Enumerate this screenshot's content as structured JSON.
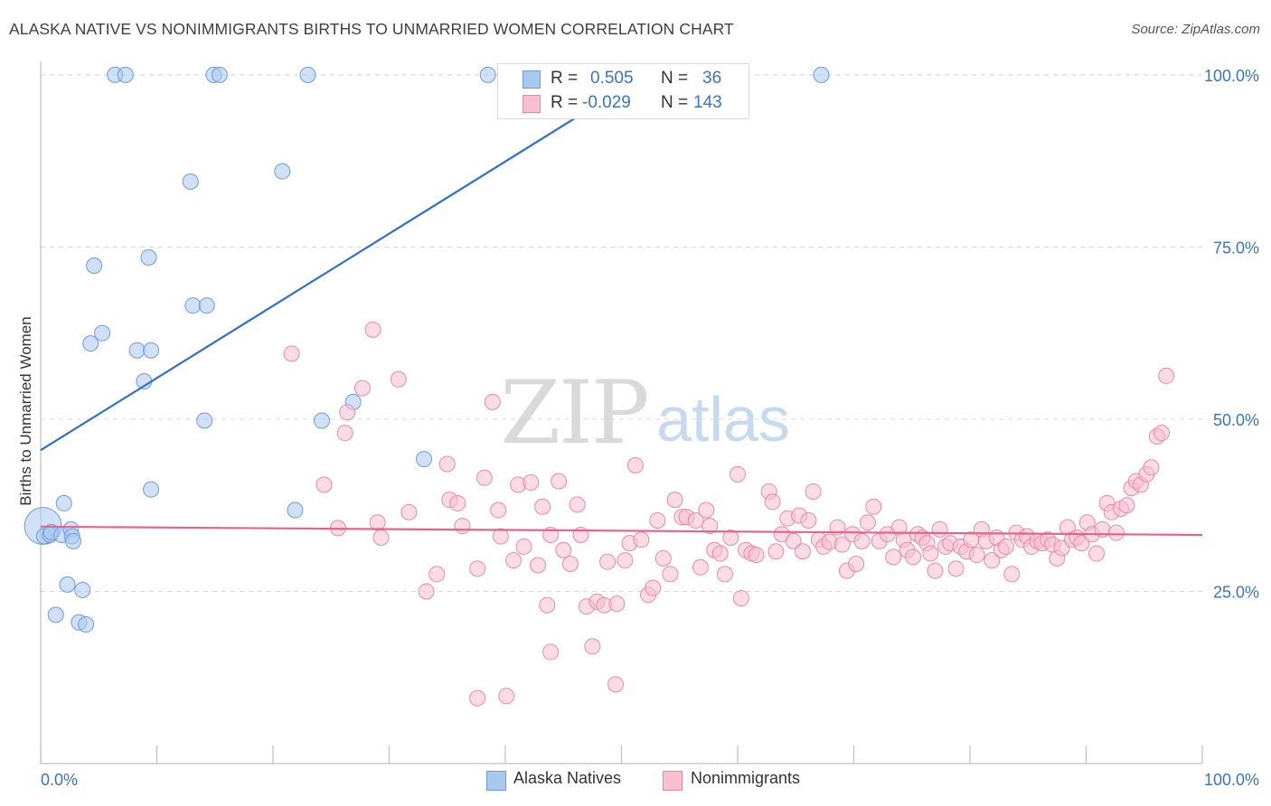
{
  "header": {
    "title": "ALASKA NATIVE VS NONIMMIGRANTS BIRTHS TO UNMARRIED WOMEN CORRELATION CHART",
    "source": "Source: ZipAtlas.com"
  },
  "watermark": {
    "zip": "ZIP",
    "atlas": "atlas"
  },
  "legend": {
    "rows": [
      {
        "r_label": "R =",
        "r_value": "0.505",
        "n_label": "N =",
        "n_value": "36",
        "color": "#a9c8f0",
        "stroke": "#6f9ad8"
      },
      {
        "r_label": "R =",
        "r_value": "-0.029",
        "n_label": "N =",
        "n_value": "143",
        "color": "#f7bfd0",
        "stroke": "#e88aa8"
      }
    ],
    "bottom": [
      {
        "label": "Alaska Natives",
        "color": "#a9c8f0",
        "stroke": "#6f9ad8"
      },
      {
        "label": "Nonimmigrants",
        "color": "#f7bfd0",
        "stroke": "#e88aa8"
      }
    ]
  },
  "chart_data": {
    "type": "scatter",
    "title": "ALASKA NATIVE VS NONIMMIGRANTS BIRTHS TO UNMARRIED WOMEN CORRELATION CHART",
    "xlabel": "",
    "ylabel": "Births to Unmarried Women",
    "xlim": [
      0,
      100
    ],
    "ylim": [
      0,
      103
    ],
    "x_tick_labels": [
      "0.0%",
      "100.0%"
    ],
    "y_tick_labels": [
      "25.0%",
      "50.0%",
      "75.0%",
      "100.0%"
    ],
    "y_ticks": [
      25,
      50,
      75,
      100
    ],
    "grid": true,
    "legend_position": "top-center",
    "series": [
      {
        "name": "Alaska Natives",
        "color": "#a9c8f0",
        "stroke": "#6f9ad8",
        "trend_color": "#2f6fcc",
        "trend": {
          "x": [
            0,
            52
          ],
          "y": [
            45.5,
            100
          ]
        },
        "points": [
          [
            0.2,
            34.5,
            2.4
          ],
          [
            0.3,
            33.0,
            1
          ],
          [
            0.8,
            33.2,
            1
          ],
          [
            0.9,
            33.6,
            1
          ],
          [
            1.8,
            33.2,
            1
          ],
          [
            2.0,
            37.8,
            1
          ],
          [
            2.6,
            34.0,
            1
          ],
          [
            2.7,
            33.0,
            1
          ],
          [
            2.8,
            32.3,
            1
          ],
          [
            2.3,
            26.0,
            1
          ],
          [
            3.6,
            25.2,
            1
          ],
          [
            1.3,
            21.6,
            1
          ],
          [
            3.3,
            20.5,
            1
          ],
          [
            3.9,
            20.2,
            1
          ],
          [
            4.3,
            61.0,
            1
          ],
          [
            4.6,
            72.3,
            1
          ],
          [
            5.3,
            62.5,
            1
          ],
          [
            8.3,
            60.0,
            1
          ],
          [
            9.5,
            60.0,
            1
          ],
          [
            8.9,
            55.5,
            1
          ],
          [
            9.3,
            73.5,
            1
          ],
          [
            9.5,
            39.8,
            1
          ],
          [
            12.9,
            84.5,
            1
          ],
          [
            13.1,
            66.5,
            1
          ],
          [
            14.1,
            49.8,
            1
          ],
          [
            14.3,
            66.5,
            1
          ],
          [
            20.8,
            86.0,
            1
          ],
          [
            21.9,
            36.8,
            1
          ],
          [
            24.2,
            49.8,
            1
          ],
          [
            26.9,
            52.5,
            1
          ],
          [
            33.0,
            44.2,
            1
          ],
          [
            6.4,
            100,
            1
          ],
          [
            7.3,
            100,
            1
          ],
          [
            14.9,
            100,
            1
          ],
          [
            15.4,
            100,
            1
          ],
          [
            23.0,
            100,
            1
          ],
          [
            38.5,
            100,
            1
          ],
          [
            67.2,
            100,
            1
          ]
        ]
      },
      {
        "name": "Nonimmigrants",
        "color": "#f7bfd0",
        "stroke": "#e88aa8",
        "trend_color": "#e0668f",
        "trend": {
          "x": [
            0,
            100
          ],
          "y": [
            34.4,
            33.2
          ]
        },
        "points": [
          [
            21.6,
            59.5,
            1
          ],
          [
            24.4,
            40.5,
            1
          ],
          [
            25.6,
            34.2,
            1
          ],
          [
            26.2,
            48.0,
            1
          ],
          [
            26.4,
            51.0,
            1
          ],
          [
            27.7,
            54.5,
            1
          ],
          [
            29.0,
            35.0,
            1
          ],
          [
            29.3,
            32.8,
            1
          ],
          [
            28.6,
            63.0,
            1
          ],
          [
            30.8,
            55.8,
            1
          ],
          [
            31.7,
            36.5,
            1
          ],
          [
            33.2,
            25.0,
            1
          ],
          [
            34.1,
            27.5,
            1
          ],
          [
            35.0,
            43.5,
            1
          ],
          [
            35.2,
            38.3,
            1
          ],
          [
            35.9,
            37.8,
            1
          ],
          [
            36.3,
            34.5,
            1
          ],
          [
            37.6,
            28.3,
            1
          ],
          [
            38.2,
            41.5,
            1
          ],
          [
            38.9,
            52.5,
            1
          ],
          [
            39.4,
            36.8,
            1
          ],
          [
            39.6,
            33.0,
            1
          ],
          [
            40.7,
            29.5,
            1
          ],
          [
            41.1,
            40.5,
            1
          ],
          [
            41.6,
            31.5,
            1
          ],
          [
            42.2,
            40.8,
            1
          ],
          [
            42.8,
            28.8,
            1
          ],
          [
            43.2,
            37.3,
            1
          ],
          [
            43.6,
            23.0,
            1
          ],
          [
            43.9,
            33.2,
            1
          ],
          [
            43.9,
            16.2,
            1
          ],
          [
            44.6,
            41.0,
            1
          ],
          [
            45.0,
            31.0,
            1
          ],
          [
            45.6,
            29.0,
            1
          ],
          [
            46.2,
            37.6,
            1
          ],
          [
            46.5,
            33.2,
            1
          ],
          [
            47.0,
            22.8,
            1
          ],
          [
            47.5,
            17.0,
            1
          ],
          [
            47.9,
            23.5,
            1
          ],
          [
            48.5,
            23.0,
            1
          ],
          [
            48.8,
            29.3,
            1
          ],
          [
            49.6,
            23.2,
            1
          ],
          [
            50.3,
            29.5,
            1
          ],
          [
            50.7,
            32.0,
            1
          ],
          [
            51.2,
            43.3,
            1
          ],
          [
            51.7,
            32.5,
            1
          ],
          [
            52.3,
            24.5,
            1
          ],
          [
            52.7,
            25.5,
            1
          ],
          [
            53.1,
            35.3,
            1
          ],
          [
            53.6,
            29.8,
            1
          ],
          [
            54.2,
            27.5,
            1
          ],
          [
            54.6,
            38.3,
            1
          ],
          [
            55.2,
            35.8,
            1
          ],
          [
            55.6,
            35.8,
            1
          ],
          [
            56.4,
            35.3,
            1
          ],
          [
            56.8,
            28.5,
            1
          ],
          [
            57.3,
            36.8,
            1
          ],
          [
            57.6,
            34.5,
            1
          ],
          [
            58.0,
            31.0,
            1
          ],
          [
            58.5,
            30.5,
            1
          ],
          [
            58.9,
            27.5,
            1
          ],
          [
            59.4,
            32.8,
            1
          ],
          [
            60.0,
            42.0,
            1
          ],
          [
            60.3,
            24.0,
            1
          ],
          [
            60.7,
            31.0,
            1
          ],
          [
            61.2,
            30.5,
            1
          ],
          [
            61.6,
            30.3,
            1
          ],
          [
            62.7,
            39.5,
            1
          ],
          [
            63.0,
            38.0,
            1
          ],
          [
            63.3,
            30.8,
            1
          ],
          [
            63.8,
            33.3,
            1
          ],
          [
            64.3,
            35.6,
            1
          ],
          [
            64.8,
            32.3,
            1
          ],
          [
            65.3,
            36.0,
            1
          ],
          [
            65.6,
            30.8,
            1
          ],
          [
            66.1,
            35.3,
            1
          ],
          [
            66.5,
            39.5,
            1
          ],
          [
            67.0,
            32.5,
            1
          ],
          [
            67.4,
            31.5,
            1
          ],
          [
            67.9,
            32.2,
            1
          ],
          [
            68.6,
            34.3,
            1
          ],
          [
            69.0,
            31.8,
            1
          ],
          [
            69.4,
            28.0,
            1
          ],
          [
            69.9,
            33.3,
            1
          ],
          [
            70.2,
            29.0,
            1
          ],
          [
            70.7,
            32.3,
            1
          ],
          [
            71.2,
            35.0,
            1
          ],
          [
            71.7,
            37.3,
            1
          ],
          [
            72.2,
            32.3,
            1
          ],
          [
            72.9,
            33.3,
            1
          ],
          [
            73.4,
            30.0,
            1
          ],
          [
            73.9,
            34.3,
            1
          ],
          [
            74.3,
            32.5,
            1
          ],
          [
            74.6,
            31.0,
            1
          ],
          [
            75.1,
            30.0,
            1
          ],
          [
            75.5,
            33.3,
            1
          ],
          [
            75.9,
            32.8,
            1
          ],
          [
            76.3,
            32.0,
            1
          ],
          [
            76.6,
            30.5,
            1
          ],
          [
            77.0,
            28.0,
            1
          ],
          [
            77.4,
            34.0,
            1
          ],
          [
            77.9,
            31.5,
            1
          ],
          [
            78.3,
            32.0,
            1
          ],
          [
            78.8,
            28.3,
            1
          ],
          [
            79.2,
            31.5,
            1
          ],
          [
            79.7,
            30.8,
            1
          ],
          [
            80.1,
            32.5,
            1
          ],
          [
            80.6,
            30.3,
            1
          ],
          [
            81.0,
            34.0,
            1
          ],
          [
            81.4,
            32.3,
            1
          ],
          [
            81.9,
            29.5,
            1
          ],
          [
            82.3,
            32.8,
            1
          ],
          [
            82.7,
            31.0,
            1
          ],
          [
            83.1,
            31.5,
            1
          ],
          [
            83.6,
            27.5,
            1
          ],
          [
            84.0,
            33.5,
            1
          ],
          [
            84.5,
            32.5,
            1
          ],
          [
            84.9,
            33.0,
            1
          ],
          [
            85.3,
            31.5,
            1
          ],
          [
            85.8,
            32.3,
            1
          ],
          [
            86.2,
            32.0,
            1
          ],
          [
            86.7,
            32.5,
            1
          ],
          [
            87.1,
            31.8,
            1
          ],
          [
            87.5,
            29.8,
            1
          ],
          [
            87.9,
            31.3,
            1
          ],
          [
            88.4,
            34.3,
            1
          ],
          [
            88.8,
            32.5,
            1
          ],
          [
            89.2,
            32.8,
            1
          ],
          [
            89.6,
            32.0,
            1
          ],
          [
            90.1,
            35.0,
            1
          ],
          [
            90.5,
            33.3,
            1
          ],
          [
            90.9,
            30.5,
            1
          ],
          [
            91.4,
            34.0,
            1
          ],
          [
            91.8,
            37.8,
            1
          ],
          [
            92.2,
            36.5,
            1
          ],
          [
            92.6,
            33.5,
            1
          ],
          [
            93.0,
            37.0,
            1
          ],
          [
            93.5,
            37.5,
            1
          ],
          [
            93.9,
            40.0,
            1
          ],
          [
            94.3,
            41.0,
            1
          ],
          [
            94.7,
            40.5,
            1
          ],
          [
            95.2,
            42.0,
            1
          ],
          [
            95.6,
            43.0,
            1
          ],
          [
            96.1,
            47.5,
            1
          ],
          [
            96.5,
            48.0,
            1
          ],
          [
            96.9,
            56.3,
            1
          ],
          [
            37.6,
            9.5,
            1
          ],
          [
            40.1,
            9.8,
            1
          ],
          [
            49.5,
            11.5,
            1
          ]
        ]
      }
    ]
  }
}
